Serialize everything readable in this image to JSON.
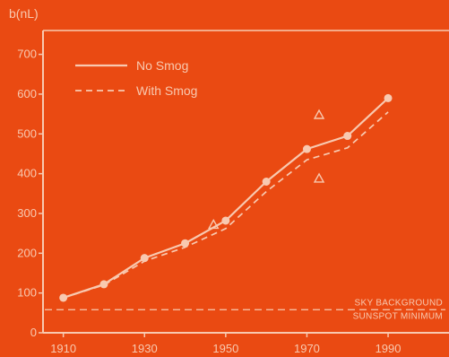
{
  "chart_data": {
    "type": "line",
    "title": "",
    "xlabel": "",
    "ylabel": "b(nL)",
    "x": [
      1910,
      1920,
      1930,
      1940,
      1950,
      1960,
      1970,
      1980,
      1990
    ],
    "xticks": [
      1910,
      1930,
      1950,
      1970,
      1990
    ],
    "yticks": [
      0,
      100,
      200,
      300,
      400,
      500,
      600,
      700
    ],
    "xlim": [
      1905,
      2005
    ],
    "ylim": [
      0,
      760
    ],
    "grid": false,
    "legend_position": "top-left",
    "series": [
      {
        "name": "No Smog",
        "style": "solid",
        "markers": "circle",
        "values": [
          88,
          122,
          188,
          225,
          282,
          380,
          462,
          495,
          590
        ]
      },
      {
        "name": "With Smog",
        "style": "dashed",
        "markers": "none",
        "values": [
          88,
          120,
          180,
          215,
          262,
          355,
          435,
          465,
          555
        ]
      }
    ],
    "extra_points": {
      "marker": "triangle",
      "points": [
        [
          1947,
          272
        ],
        [
          1973,
          548
        ],
        [
          1973,
          388
        ]
      ]
    },
    "reference_lines": [
      {
        "label": "SKY BACKGROUND",
        "value": 58
      },
      {
        "label": "SUNSPOT MINIMUM",
        "value": 58
      }
    ],
    "colors": {
      "background": "#ea4a12",
      "foreground": "#f8c9b0"
    }
  }
}
